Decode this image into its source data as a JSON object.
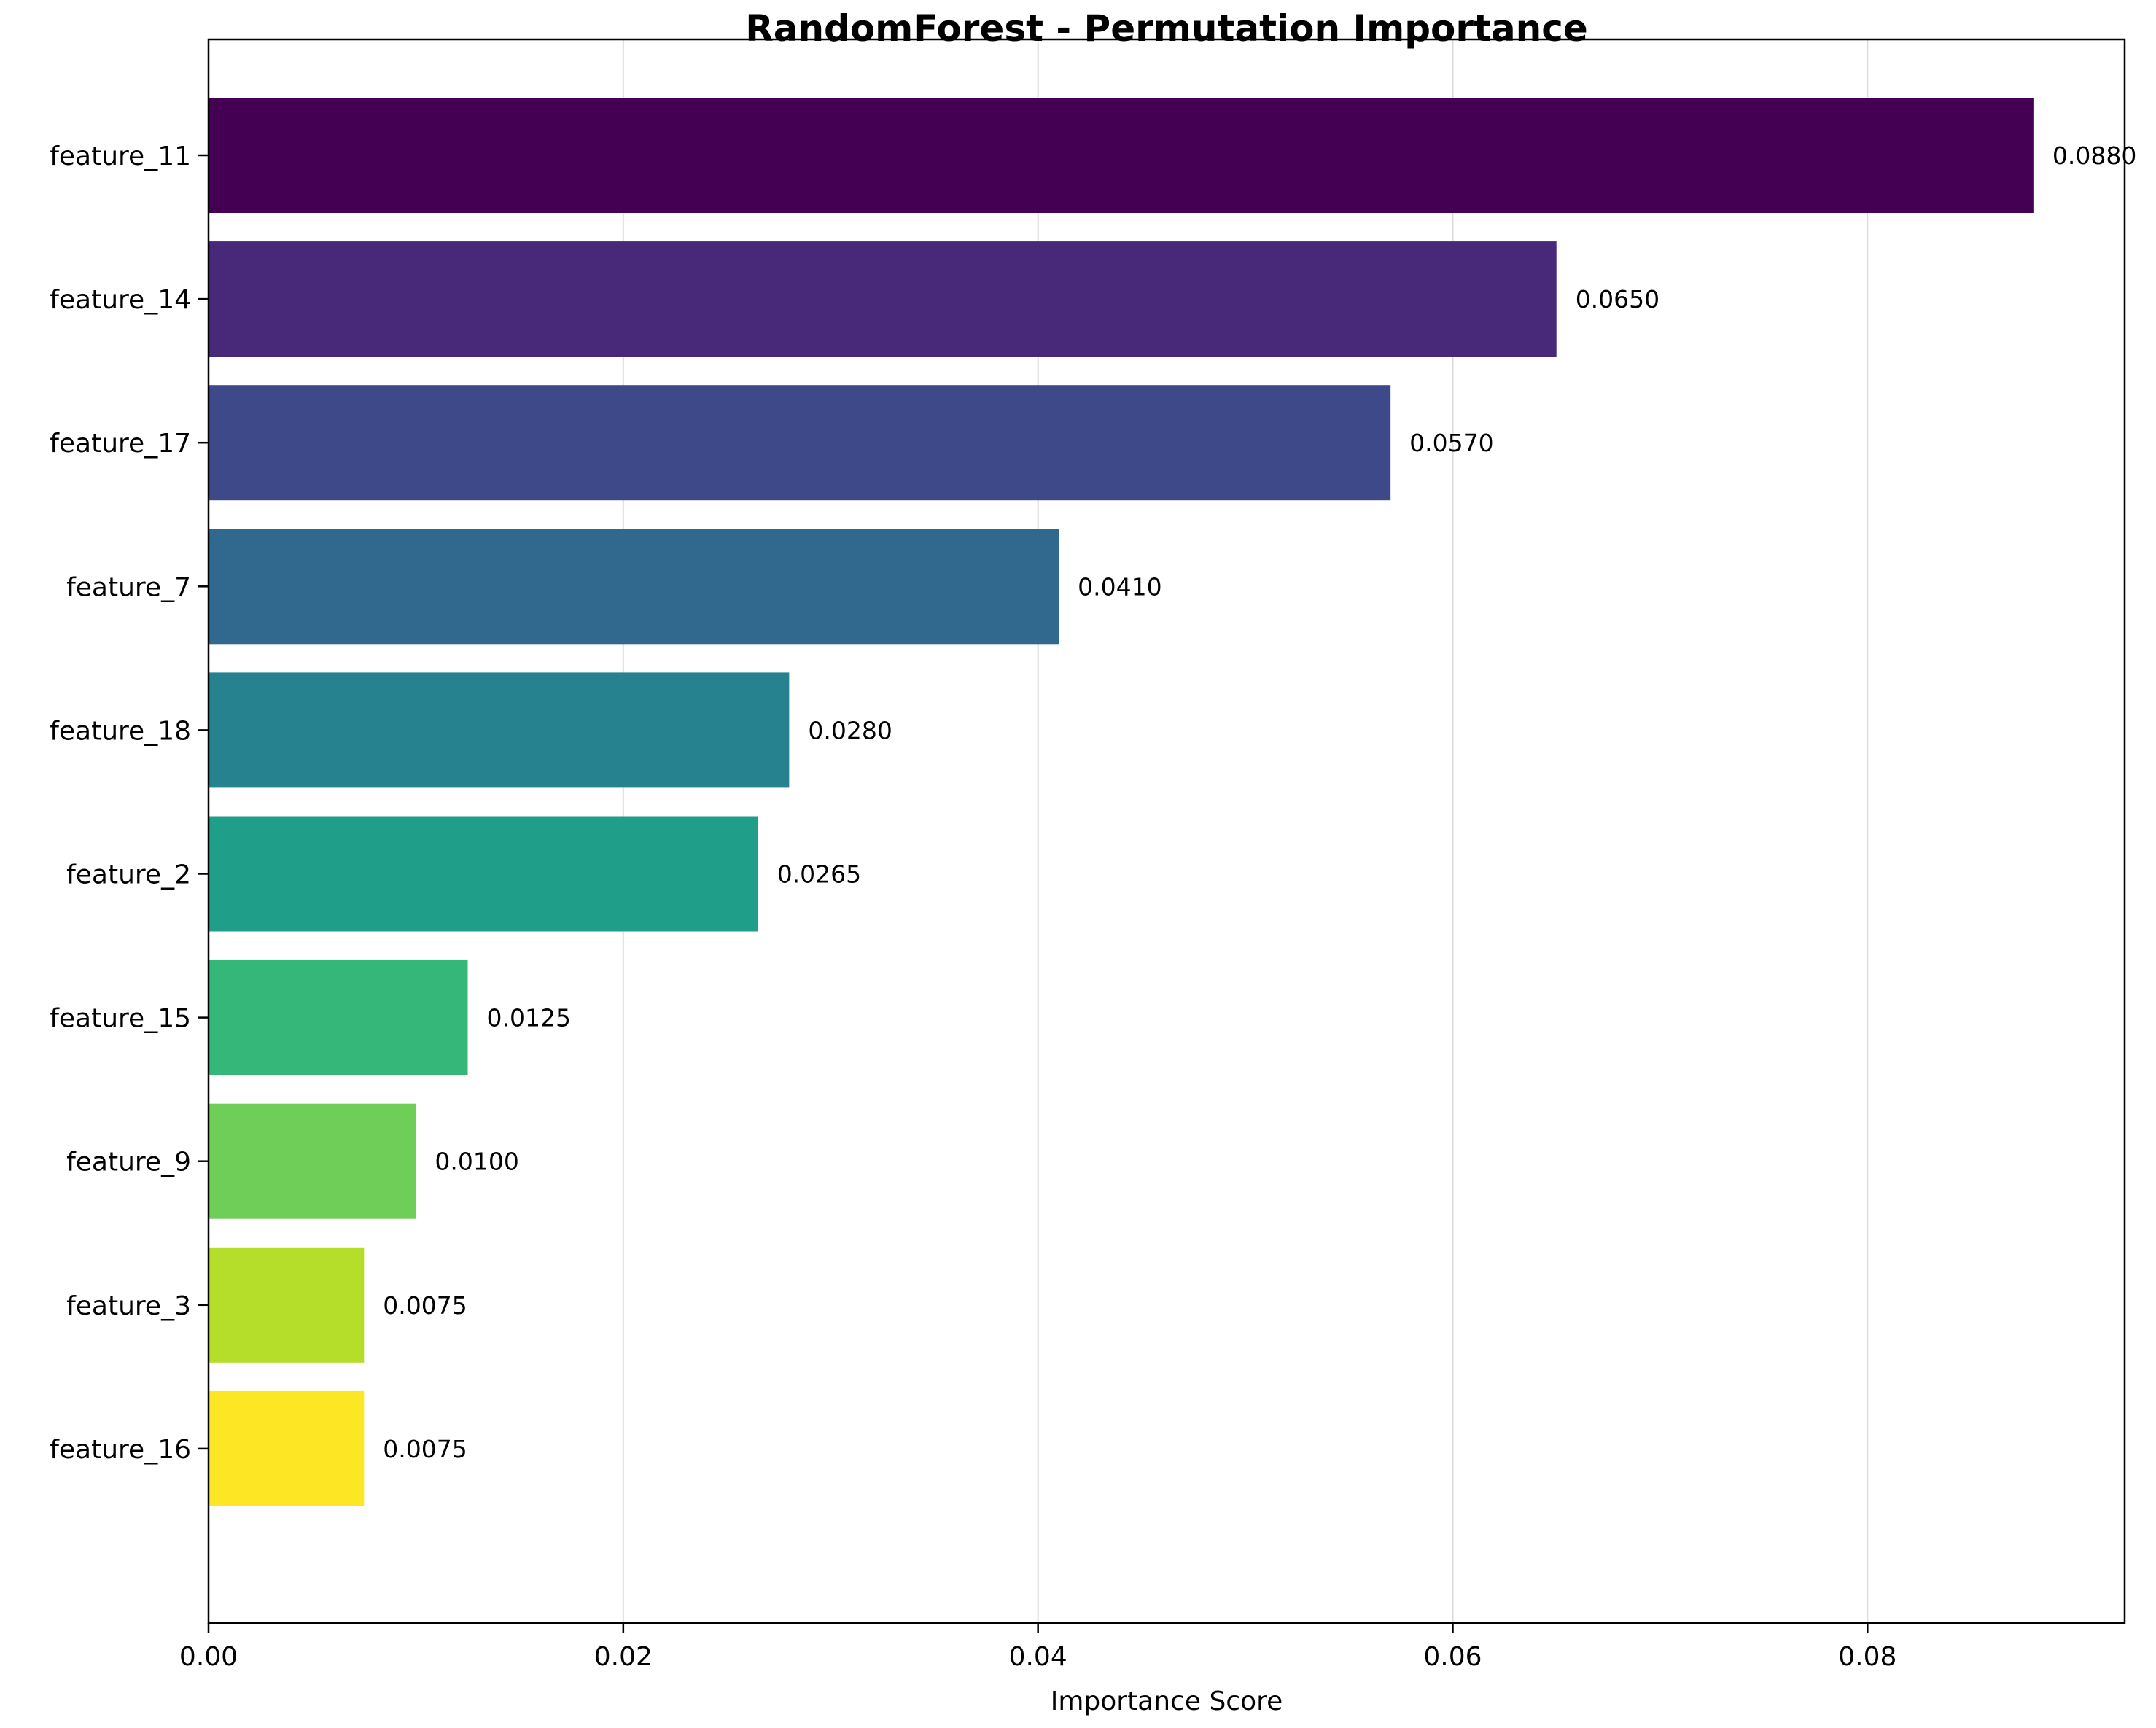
{
  "chart_data": {
    "type": "bar",
    "orientation": "horizontal",
    "title": "RandomForest - Permutation Importance",
    "xlabel": "Importance Score",
    "ylabel": "",
    "xlim": [
      0,
      0.0924
    ],
    "xticks": [
      0.0,
      0.02,
      0.04,
      0.06,
      0.08
    ],
    "xtick_labels": [
      "0.00",
      "0.02",
      "0.04",
      "0.06",
      "0.08"
    ],
    "grid": "x-axis vertical gridlines",
    "categories": [
      "feature_11",
      "feature_14",
      "feature_17",
      "feature_7",
      "feature_18",
      "feature_2",
      "feature_15",
      "feature_9",
      "feature_3",
      "feature_16"
    ],
    "values": [
      0.088,
      0.065,
      0.057,
      0.041,
      0.028,
      0.0265,
      0.0125,
      0.01,
      0.0075,
      0.0075
    ],
    "value_labels": [
      "0.0880",
      "0.0650",
      "0.0570",
      "0.0410",
      "0.0280",
      "0.0265",
      "0.0125",
      "0.0100",
      "0.0075",
      "0.0075"
    ],
    "colors": [
      "#440154",
      "#482878",
      "#3e4989",
      "#31688e",
      "#26828e",
      "#1f9e89",
      "#35b779",
      "#6ece58",
      "#b5de2b",
      "#fde725"
    ]
  }
}
